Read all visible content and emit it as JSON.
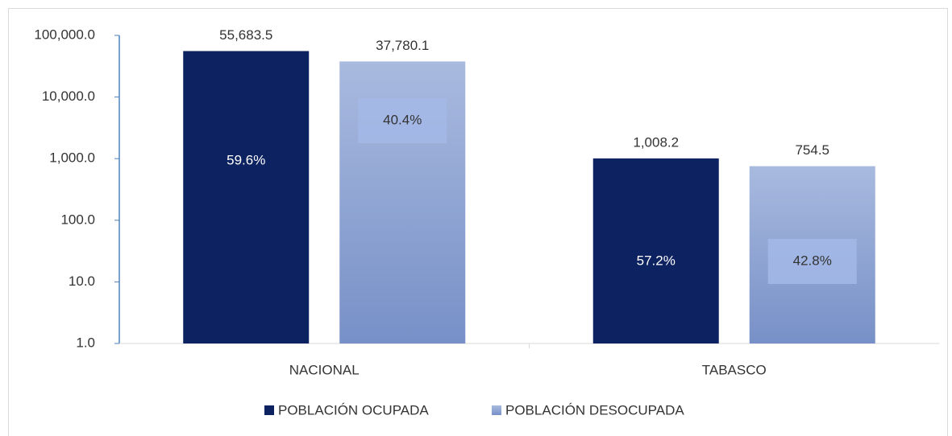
{
  "chart_data": {
    "type": "bar",
    "log": true,
    "categories": [
      "NACIONAL",
      "TABASCO"
    ],
    "series": [
      {
        "name": "POBLACIÓN OCUPADA",
        "color": "#0d2260",
        "values": [
          55683.5,
          1008.2
        ],
        "value_labels": [
          "55,683.5",
          "1,008.2"
        ],
        "shares": [
          59.6,
          57.2
        ],
        "share_labels": [
          "59.6%",
          "57.2%"
        ]
      },
      {
        "name": "POBLACIÓN DESOCUPADA",
        "color": "#8ea3d6",
        "values": [
          37780.1,
          754.5
        ],
        "value_labels": [
          "37,780.1",
          "754.5"
        ],
        "shares": [
          40.4,
          42.8
        ],
        "share_labels": [
          "40.4%",
          "42.8%"
        ]
      }
    ],
    "ylim": [
      1,
      100000
    ],
    "yticks": [
      {
        "value": 1,
        "label": "1.0"
      },
      {
        "value": 10,
        "label": "10.0"
      },
      {
        "value": 100,
        "label": "100.0"
      },
      {
        "value": 1000,
        "label": "1,000.0"
      },
      {
        "value": 10000,
        "label": "10,000.0"
      },
      {
        "value": 100000,
        "label": "100,000.0"
      }
    ],
    "legend": "bottom"
  }
}
